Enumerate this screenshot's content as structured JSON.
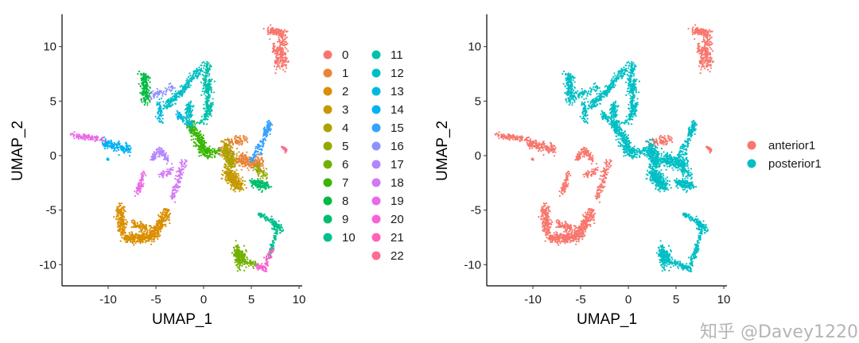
{
  "watermark": "知乎 @Davey1220",
  "chart_data": [
    {
      "type": "scatter",
      "xlabel": "UMAP_1",
      "ylabel": "UMAP_2",
      "xlim": [
        -14.8,
        10.3
      ],
      "ylim": [
        -11.9,
        12.9
      ],
      "xticks": [
        -10,
        -5,
        0,
        5,
        10
      ],
      "yticks": [
        -10,
        -5,
        0,
        5,
        10
      ],
      "grid": false,
      "legend_placement": "right",
      "color_by": "cluster",
      "clusters": [
        {
          "label": "0",
          "color": "#F8766D",
          "group": 0,
          "segments": [
            [
              6.8,
              11.5,
              8.5,
              11.2,
              0.35,
              120
            ],
            [
              8.2,
              10.8,
              8.3,
              8.2,
              0.45,
              160
            ],
            [
              7.4,
              10.3,
              7.8,
              8,
              0.3,
              60
            ]
          ]
        },
        {
          "label": "1",
          "color": "#EB8335",
          "group": 1,
          "segments": [
            [
              3.5,
              -0.3,
              6,
              -0.8,
              0.6,
              260
            ],
            [
              1.5,
              0.5,
              3,
              0.2,
              0.3,
              40
            ],
            [
              2.3,
              1.2,
              4.5,
              1.5,
              0.35,
              80,
              0
            ]
          ]
        },
        {
          "label": "2",
          "color": "#DA8F00",
          "group": 0,
          "segments": [
            [
              -8.7,
              -4.6,
              -8.5,
              -7.2,
              0.45,
              200
            ],
            [
              -8.3,
              -7.6,
              -5,
              -7.4,
              0.4,
              300
            ],
            [
              -5,
              -7.2,
              -3.8,
              -5,
              0.45,
              200
            ],
            [
              -7.5,
              -6.3,
              -5.5,
              -6.8,
              0.4,
              100
            ]
          ]
        },
        {
          "label": "3",
          "color": "#C69900",
          "group": 1,
          "segments": [
            [
              2.3,
              -1.5,
              3.8,
              -2.8,
              0.55,
              300
            ]
          ]
        },
        {
          "label": "4",
          "color": "#AFA100",
          "group": 1,
          "segments": [
            [
              2.2,
              1,
              3,
              -1,
              0.5,
              250
            ]
          ]
        },
        {
          "label": "5",
          "color": "#94A900",
          "group": 1,
          "segments": [
            [
              5.5,
              -1,
              6.5,
              -2,
              0.4,
              60
            ]
          ]
        },
        {
          "label": "6",
          "color": "#72B000",
          "group": 1,
          "segments": [
            [
              3.6,
              -8.8,
              4.2,
              -9.8,
              0.5,
              180
            ],
            [
              3.4,
              -8,
              3.6,
              -10.5,
              0.3,
              60
            ],
            [
              4.5,
              -9.8,
              5.6,
              -10,
              0.25,
              40
            ]
          ]
        },
        {
          "label": "7",
          "color": "#39B600",
          "group": 1,
          "segments": [
            [
              -1.5,
              3,
              0.5,
              0,
              0.45,
              250
            ],
            [
              -0.5,
              0.6,
              1.5,
              0.3,
              0.4,
              80
            ]
          ]
        },
        {
          "label": "8",
          "color": "#00BA42",
          "group": 1,
          "segments": [
            [
              -6.3,
              7.5,
              -6,
              5,
              0.45,
              180
            ]
          ]
        },
        {
          "label": "9",
          "color": "#00BE6C",
          "group": 1,
          "segments": [
            [
              5,
              -2.5,
              6.8,
              -2.8,
              0.35,
              150
            ]
          ]
        },
        {
          "label": "10",
          "color": "#00C08D",
          "group": 1,
          "segments": [
            [
              5.8,
              -5.3,
              7.5,
              -6.2,
              0.2,
              70
            ],
            [
              7.5,
              -6.3,
              8,
              -6.8,
              0.35,
              80
            ],
            [
              7.6,
              -7,
              6.8,
              -9.5,
              0.2,
              60
            ]
          ]
        },
        {
          "label": "11",
          "color": "#00C1AA",
          "group": 1,
          "segments": [
            [
              0.3,
              8.3,
              0.6,
              4,
              0.45,
              250
            ],
            [
              0.6,
              4,
              -0.3,
              3,
              0.3,
              60
            ]
          ]
        },
        {
          "label": "12",
          "color": "#00BFC4",
          "group": 1,
          "segments": [
            [
              -0.3,
              8,
              -2.2,
              6,
              0.3,
              120
            ],
            [
              -2.2,
              6,
              -4,
              4.5,
              0.35,
              120
            ],
            [
              -1.5,
              4.8,
              -1.5,
              3.5,
              0.3,
              80
            ]
          ]
        },
        {
          "label": "13",
          "color": "#00BADD",
          "group": 1,
          "segments": [
            [
              -4.7,
              5,
              -4.5,
              3.2,
              0.3,
              60
            ],
            [
              -2.8,
              3.8,
              -1.2,
              2.8,
              0.35,
              80
            ]
          ]
        },
        {
          "label": "14",
          "color": "#00B2F3",
          "group": 0,
          "segments": [
            [
              -10.5,
              1.2,
              -7.8,
              0.5,
              0.35,
              180
            ],
            [
              -10,
              -0.3,
              -10,
              -0.3,
              0.1,
              10
            ]
          ]
        },
        {
          "label": "15",
          "color": "#35A2FF",
          "group": 1,
          "segments": [
            [
              5,
              -0.5,
              6.5,
              2,
              0.25,
              70
            ],
            [
              6.5,
              2,
              7,
              3,
              0.3,
              80
            ],
            [
              6.5,
              2.5,
              6,
              0,
              0.15,
              30
            ]
          ]
        },
        {
          "label": "16",
          "color": "#8F91FF",
          "group": 1,
          "segments": [
            [
              -5.5,
              5.5,
              -3,
              6.3,
              0.3,
              60
            ]
          ]
        },
        {
          "label": "17",
          "color": "#B385FF",
          "group": 0,
          "segments": [
            [
              -5.5,
              -0.3,
              -4.5,
              0.5,
              0.3,
              60
            ],
            [
              -4.5,
              0.5,
              -3.6,
              -0.5,
              0.25,
              50
            ]
          ]
        },
        {
          "label": "18",
          "color": "#D277F8",
          "group": 0,
          "segments": [
            [
              -2,
              -0.5,
              -3.3,
              -4,
              0.3,
              100
            ],
            [
              -4.5,
              -1.8,
              -3.2,
              -1.3,
              0.3,
              40
            ]
          ]
        },
        {
          "label": "19",
          "color": "#EA69EA",
          "group": 0,
          "segments": [
            [
              -13.8,
              1.9,
              -10.5,
              1.5,
              0.25,
              100
            ],
            [
              -6.2,
              -1.5,
              -7,
              -3.5,
              0.3,
              70
            ]
          ]
        },
        {
          "label": "20",
          "color": "#F962D4",
          "group": 1,
          "segments": [
            [
              5.6,
              -10.2,
              6.6,
              -10.4,
              0.25,
              60
            ],
            [
              6.5,
              -10,
              7.3,
              -8.5,
              0.2,
              30
            ]
          ]
        },
        {
          "label": "21",
          "color": "#FF62B8",
          "group": 1,
          "segments": [
            [
              6.5,
              -9.5,
              7,
              -9,
              0.2,
              15
            ]
          ]
        },
        {
          "label": "22",
          "color": "#FF6C91",
          "group": 0,
          "segments": [
            [
              8.2,
              0.9,
              8.8,
              0.3,
              0.15,
              25
            ]
          ]
        }
      ]
    },
    {
      "type": "scatter",
      "xlabel": "UMAP_1",
      "ylabel": "UMAP_2",
      "xlim": [
        -14.8,
        10.3
      ],
      "ylim": [
        -11.9,
        12.9
      ],
      "xticks": [
        -10,
        -5,
        0,
        5,
        10
      ],
      "yticks": [
        -10,
        -5,
        0,
        5,
        10
      ],
      "grid": false,
      "legend_placement": "right",
      "color_by": "condition",
      "groups": [
        {
          "label": "anterior1",
          "color": "#F8766D"
        },
        {
          "label": "posterior1",
          "color": "#00BFC4"
        }
      ]
    }
  ]
}
